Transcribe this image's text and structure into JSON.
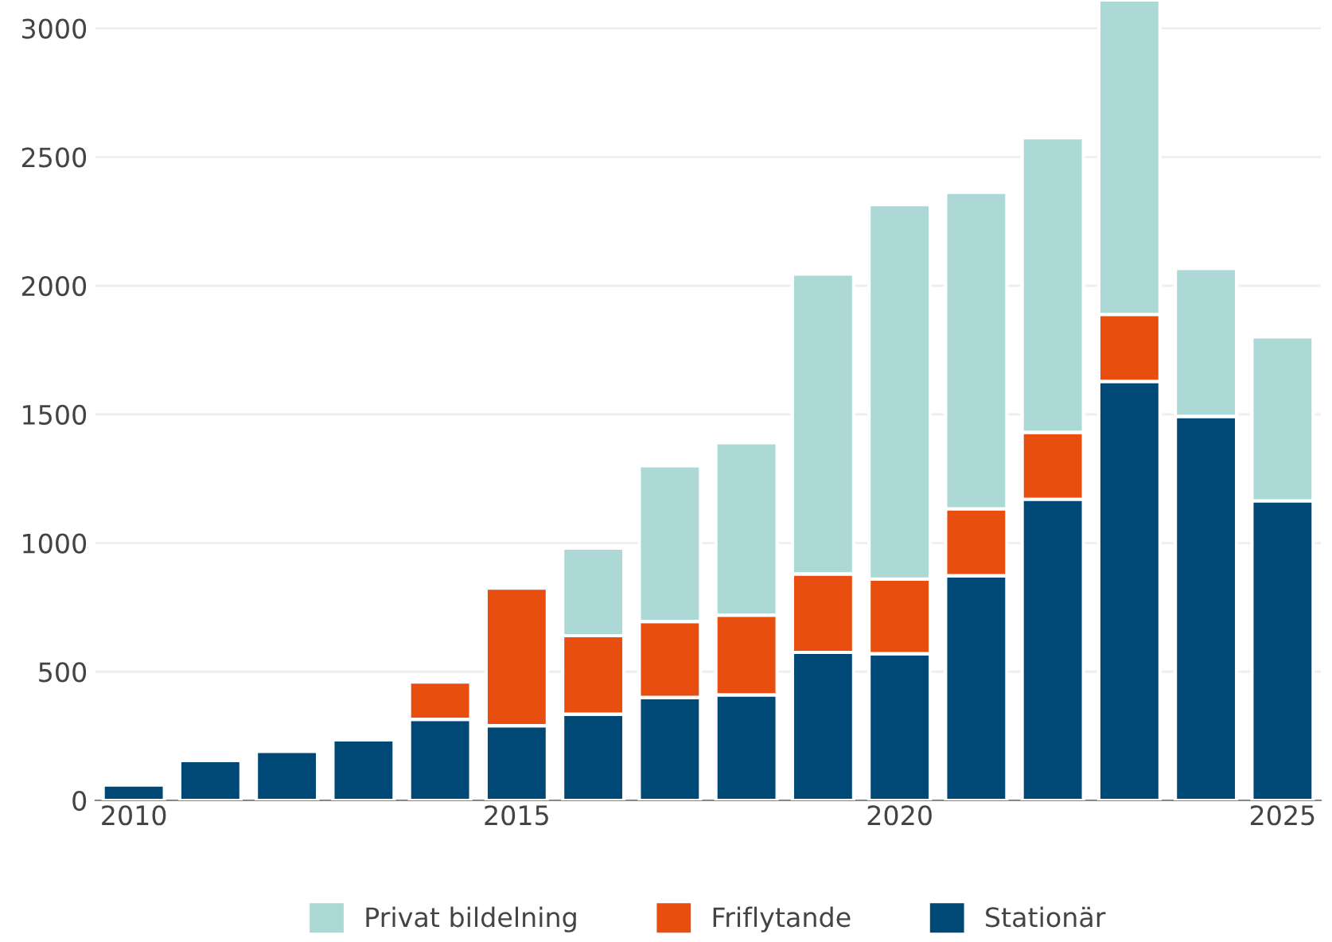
{
  "chart_data": {
    "type": "bar",
    "stacked": true,
    "x": [
      2010,
      2011,
      2012,
      2013,
      2014,
      2015,
      2016,
      2017,
      2018,
      2019,
      2020,
      2021,
      2022,
      2023,
      2024,
      2025
    ],
    "series": [
      {
        "name": "Stationär",
        "color": "#004876",
        "values": [
          60,
          155,
          190,
          235,
          315,
          290,
          335,
          400,
          410,
          575,
          570,
          873,
          1170,
          1628,
          1492,
          1164
        ]
      },
      {
        "name": "Friflytande",
        "color": "#e84e0f",
        "values": [
          null,
          null,
          null,
          null,
          145,
          535,
          305,
          295,
          310,
          305,
          290,
          260,
          260,
          260,
          null,
          null
        ]
      },
      {
        "name": "Privat bildelning",
        "color": "#acd9d6",
        "values": [
          null,
          null,
          null,
          null,
          null,
          null,
          340,
          605,
          670,
          1165,
          1455,
          1230,
          1145,
          1222,
          575,
          637
        ]
      }
    ],
    "xlim": [
      2009.5,
      2025.5
    ],
    "xticks": [
      2010,
      2015,
      2020,
      2025
    ],
    "ylim": [
      0,
      3110
    ],
    "yticks": [
      0,
      500,
      1000,
      1500,
      2000,
      2500,
      3000
    ],
    "grid": "y",
    "legend": "bottom"
  }
}
